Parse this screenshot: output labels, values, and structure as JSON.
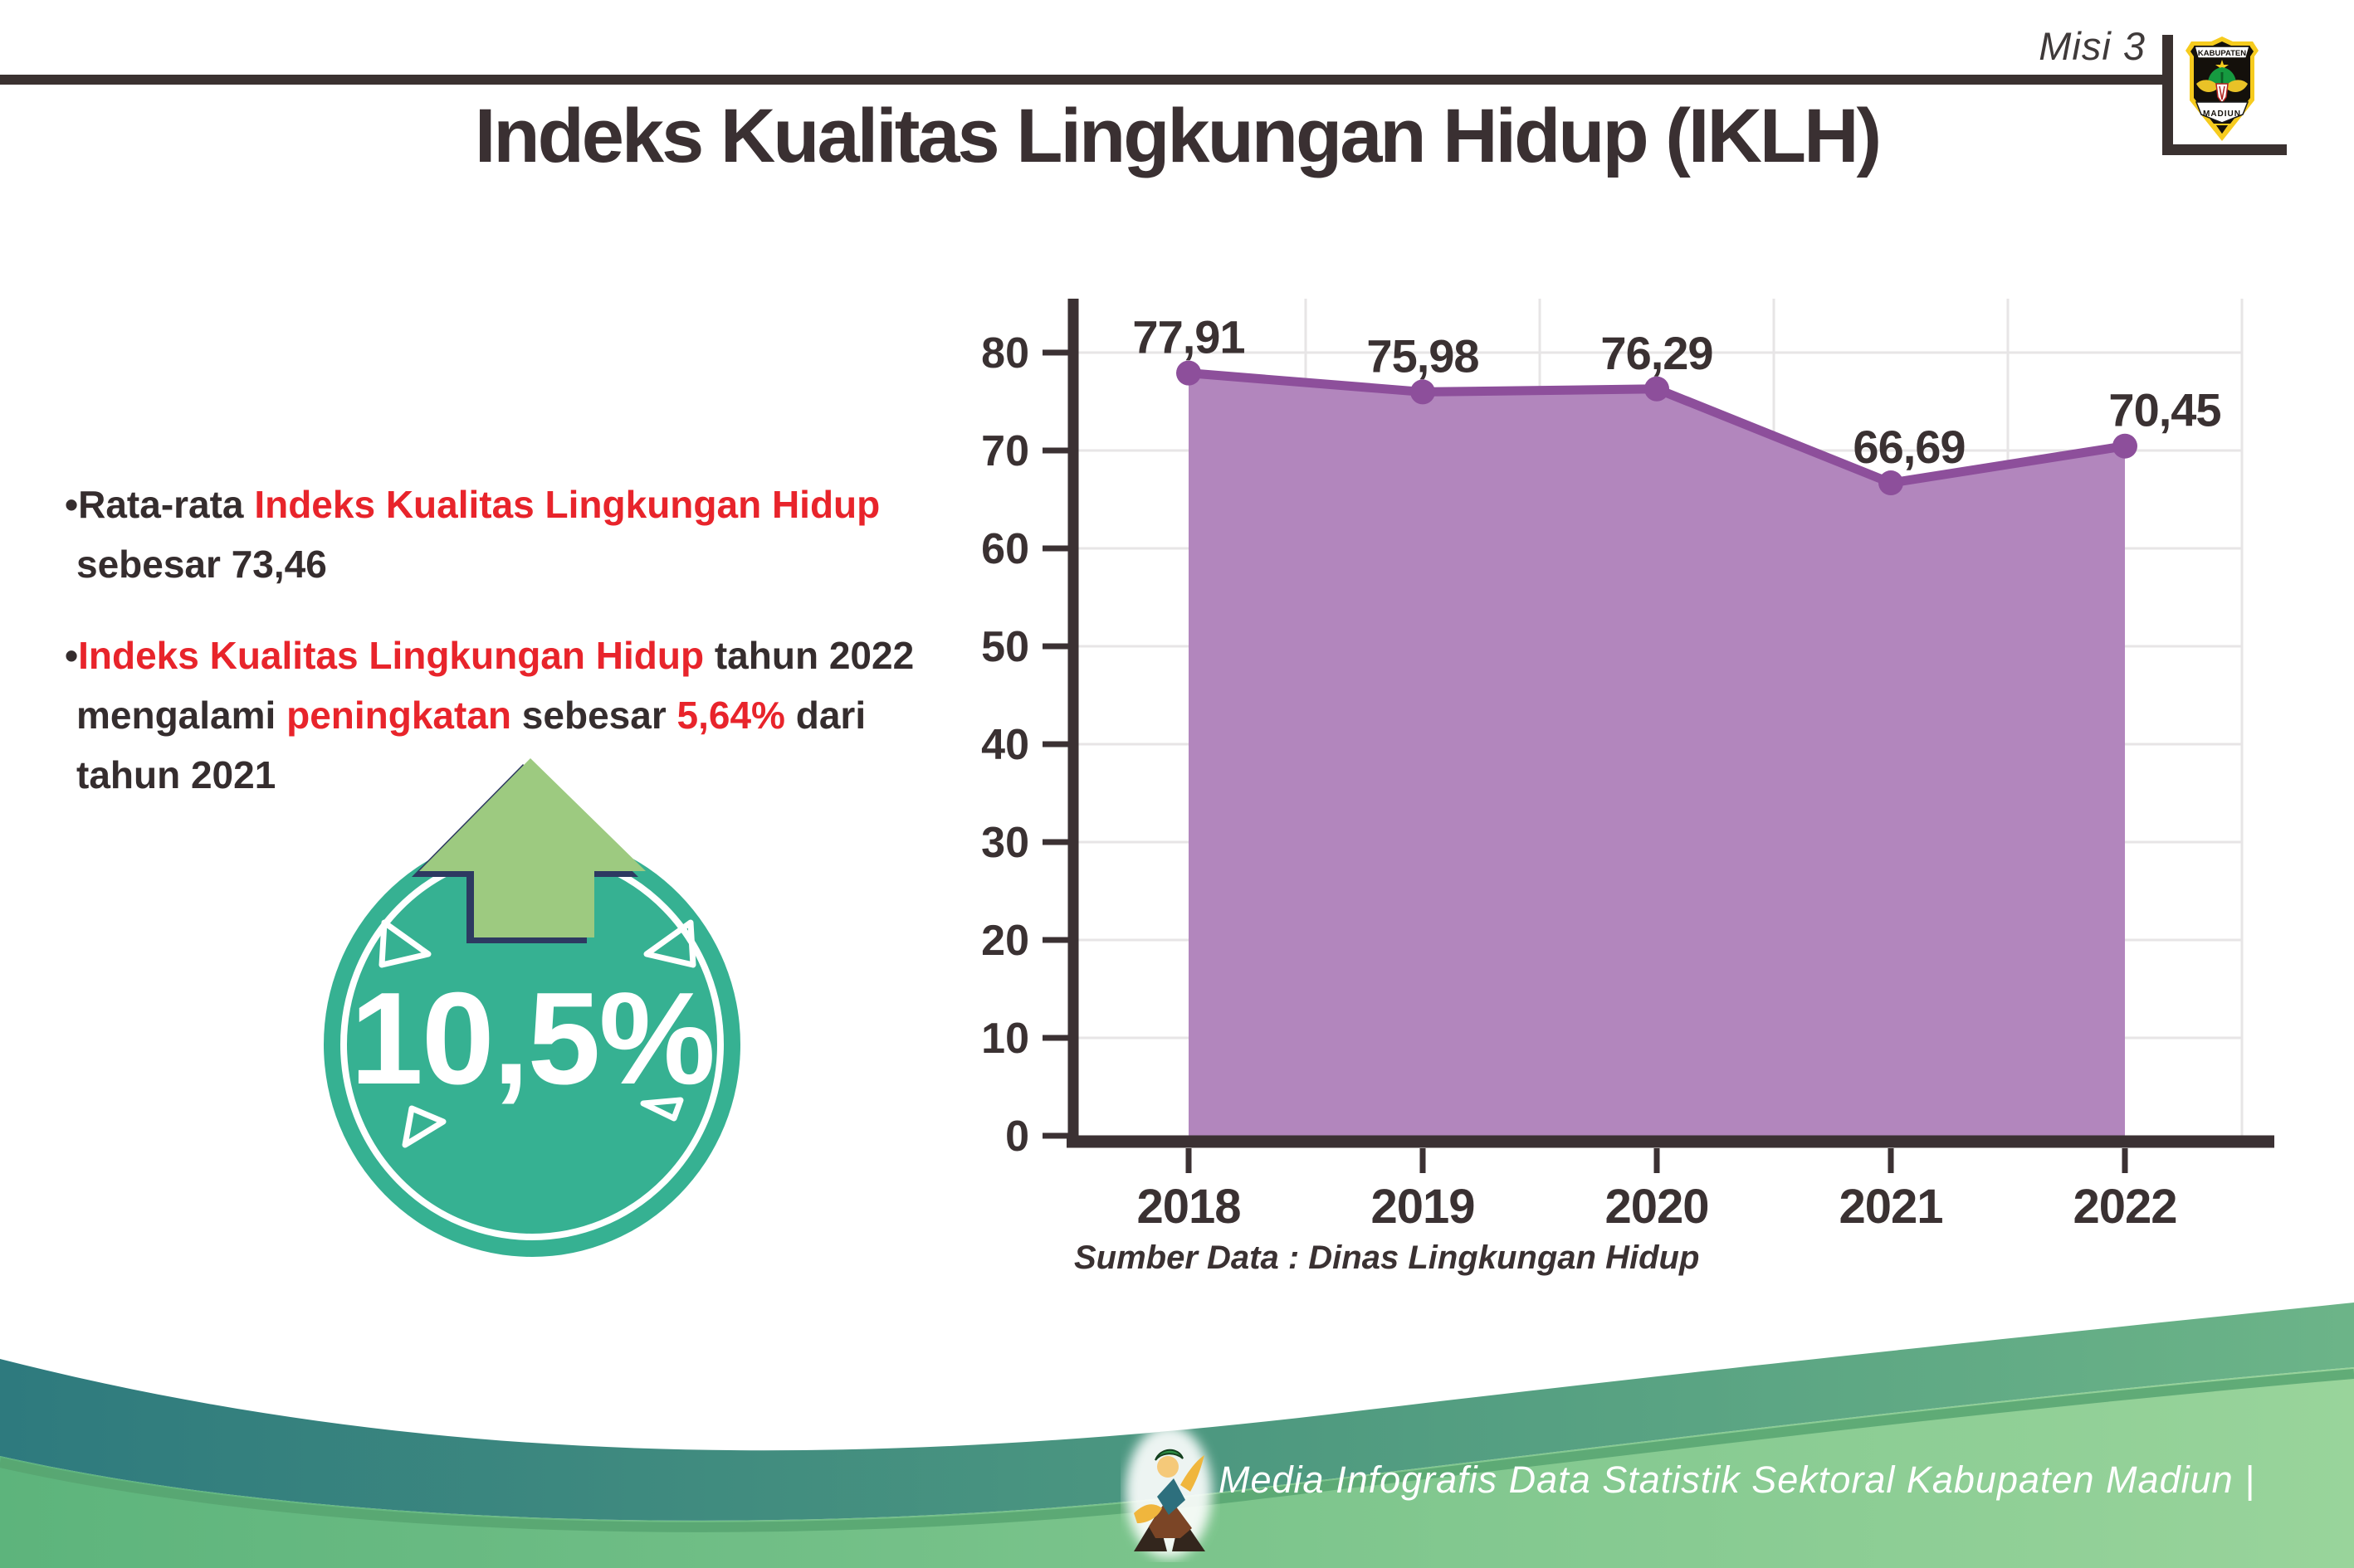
{
  "page": {
    "background": "#ffffff"
  },
  "header": {
    "misi_label": "Misi 3",
    "logo": {
      "top_text": "KABUPATEN",
      "bottom_text": "MADIUN"
    }
  },
  "title": "Indeks Kualitas Lingkungan Hidup (IKLH)",
  "bullet_marker": "•",
  "bullets": {
    "bullet1": {
      "seg1": "Rata-rata ",
      "seg2": "Indeks Kualitas Lingkungan Hidup",
      "seg3": "sebesar 73,46"
    },
    "bullet2": {
      "seg1": "Indeks Kualitas Lingkungan Hidup",
      "seg2": " tahun 2022",
      "seg3": "mengalami ",
      "seg4": "peningkatan",
      "seg5": " sebesar ",
      "seg6": "5,64%",
      "seg7": " dari",
      "seg8": "tahun 2021"
    }
  },
  "badge": {
    "value": "10,5%",
    "circle_color": "#36b192",
    "arrow_color": "#9dca80",
    "arrow_outline_color": "#2d3961"
  },
  "chart_data": {
    "type": "area",
    "title": "",
    "categories": [
      "2018",
      "2019",
      "2020",
      "2021",
      "2022"
    ],
    "values": [
      77.91,
      75.98,
      76.29,
      66.69,
      70.45
    ],
    "value_labels": [
      "77,91",
      "75,98",
      "76,29",
      "66,69",
      "70,45"
    ],
    "xlabel": "",
    "ylabel": "",
    "ylim": [
      0,
      85
    ],
    "yticks": [
      0,
      10,
      20,
      30,
      40,
      50,
      60,
      70,
      80
    ],
    "grid": true,
    "legend": "none",
    "area_color": "#b286bd",
    "line_color": "#8d4f9b",
    "axis_color": "#3b3133",
    "gridline_color": "#e7e5e6",
    "label_color": "#3a3132"
  },
  "source_note": "Sumber Data : Dinas Lingkungan Hidup",
  "footer": {
    "caption": "Media Infografis Data Statistik Sektoral Kabupaten Madiun |",
    "teal_left": "#2e7a7e",
    "teal_right": "#6cb488",
    "green_left": "#5db47c",
    "green_right": "#99d49b"
  },
  "text_colors": {
    "dark": "#3a3032",
    "red": "#e8242b"
  }
}
